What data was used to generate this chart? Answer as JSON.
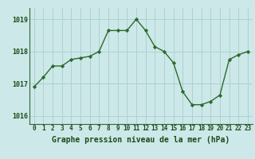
{
  "x": [
    0,
    1,
    2,
    3,
    4,
    5,
    6,
    7,
    8,
    9,
    10,
    11,
    12,
    13,
    14,
    15,
    16,
    17,
    18,
    19,
    20,
    21,
    22,
    23
  ],
  "y": [
    1016.9,
    1017.2,
    1017.55,
    1017.55,
    1017.75,
    1017.8,
    1017.85,
    1018.0,
    1018.65,
    1018.65,
    1018.65,
    1019.0,
    1018.65,
    1018.15,
    1018.0,
    1017.65,
    1016.75,
    1016.35,
    1016.35,
    1016.45,
    1016.65,
    1017.75,
    1017.9,
    1018.0
  ],
  "ylim": [
    1015.75,
    1019.35
  ],
  "yticks": [
    1016,
    1017,
    1018,
    1019
  ],
  "xticks": [
    0,
    1,
    2,
    3,
    4,
    5,
    6,
    7,
    8,
    9,
    10,
    11,
    12,
    13,
    14,
    15,
    16,
    17,
    18,
    19,
    20,
    21,
    22,
    23
  ],
  "xlabel": "Graphe pression niveau de la mer (hPa)",
  "line_color": "#2d6a2d",
  "marker": "D",
  "marker_size": 2.2,
  "bg_color": "#cce8e8",
  "grid_color": "#aacece",
  "tick_label_color": "#1a4a1a",
  "xlabel_color": "#1a4a1a",
  "spine_color": "#336633",
  "xlabel_fontsize": 7.0,
  "tick_fontsize": 5.5
}
